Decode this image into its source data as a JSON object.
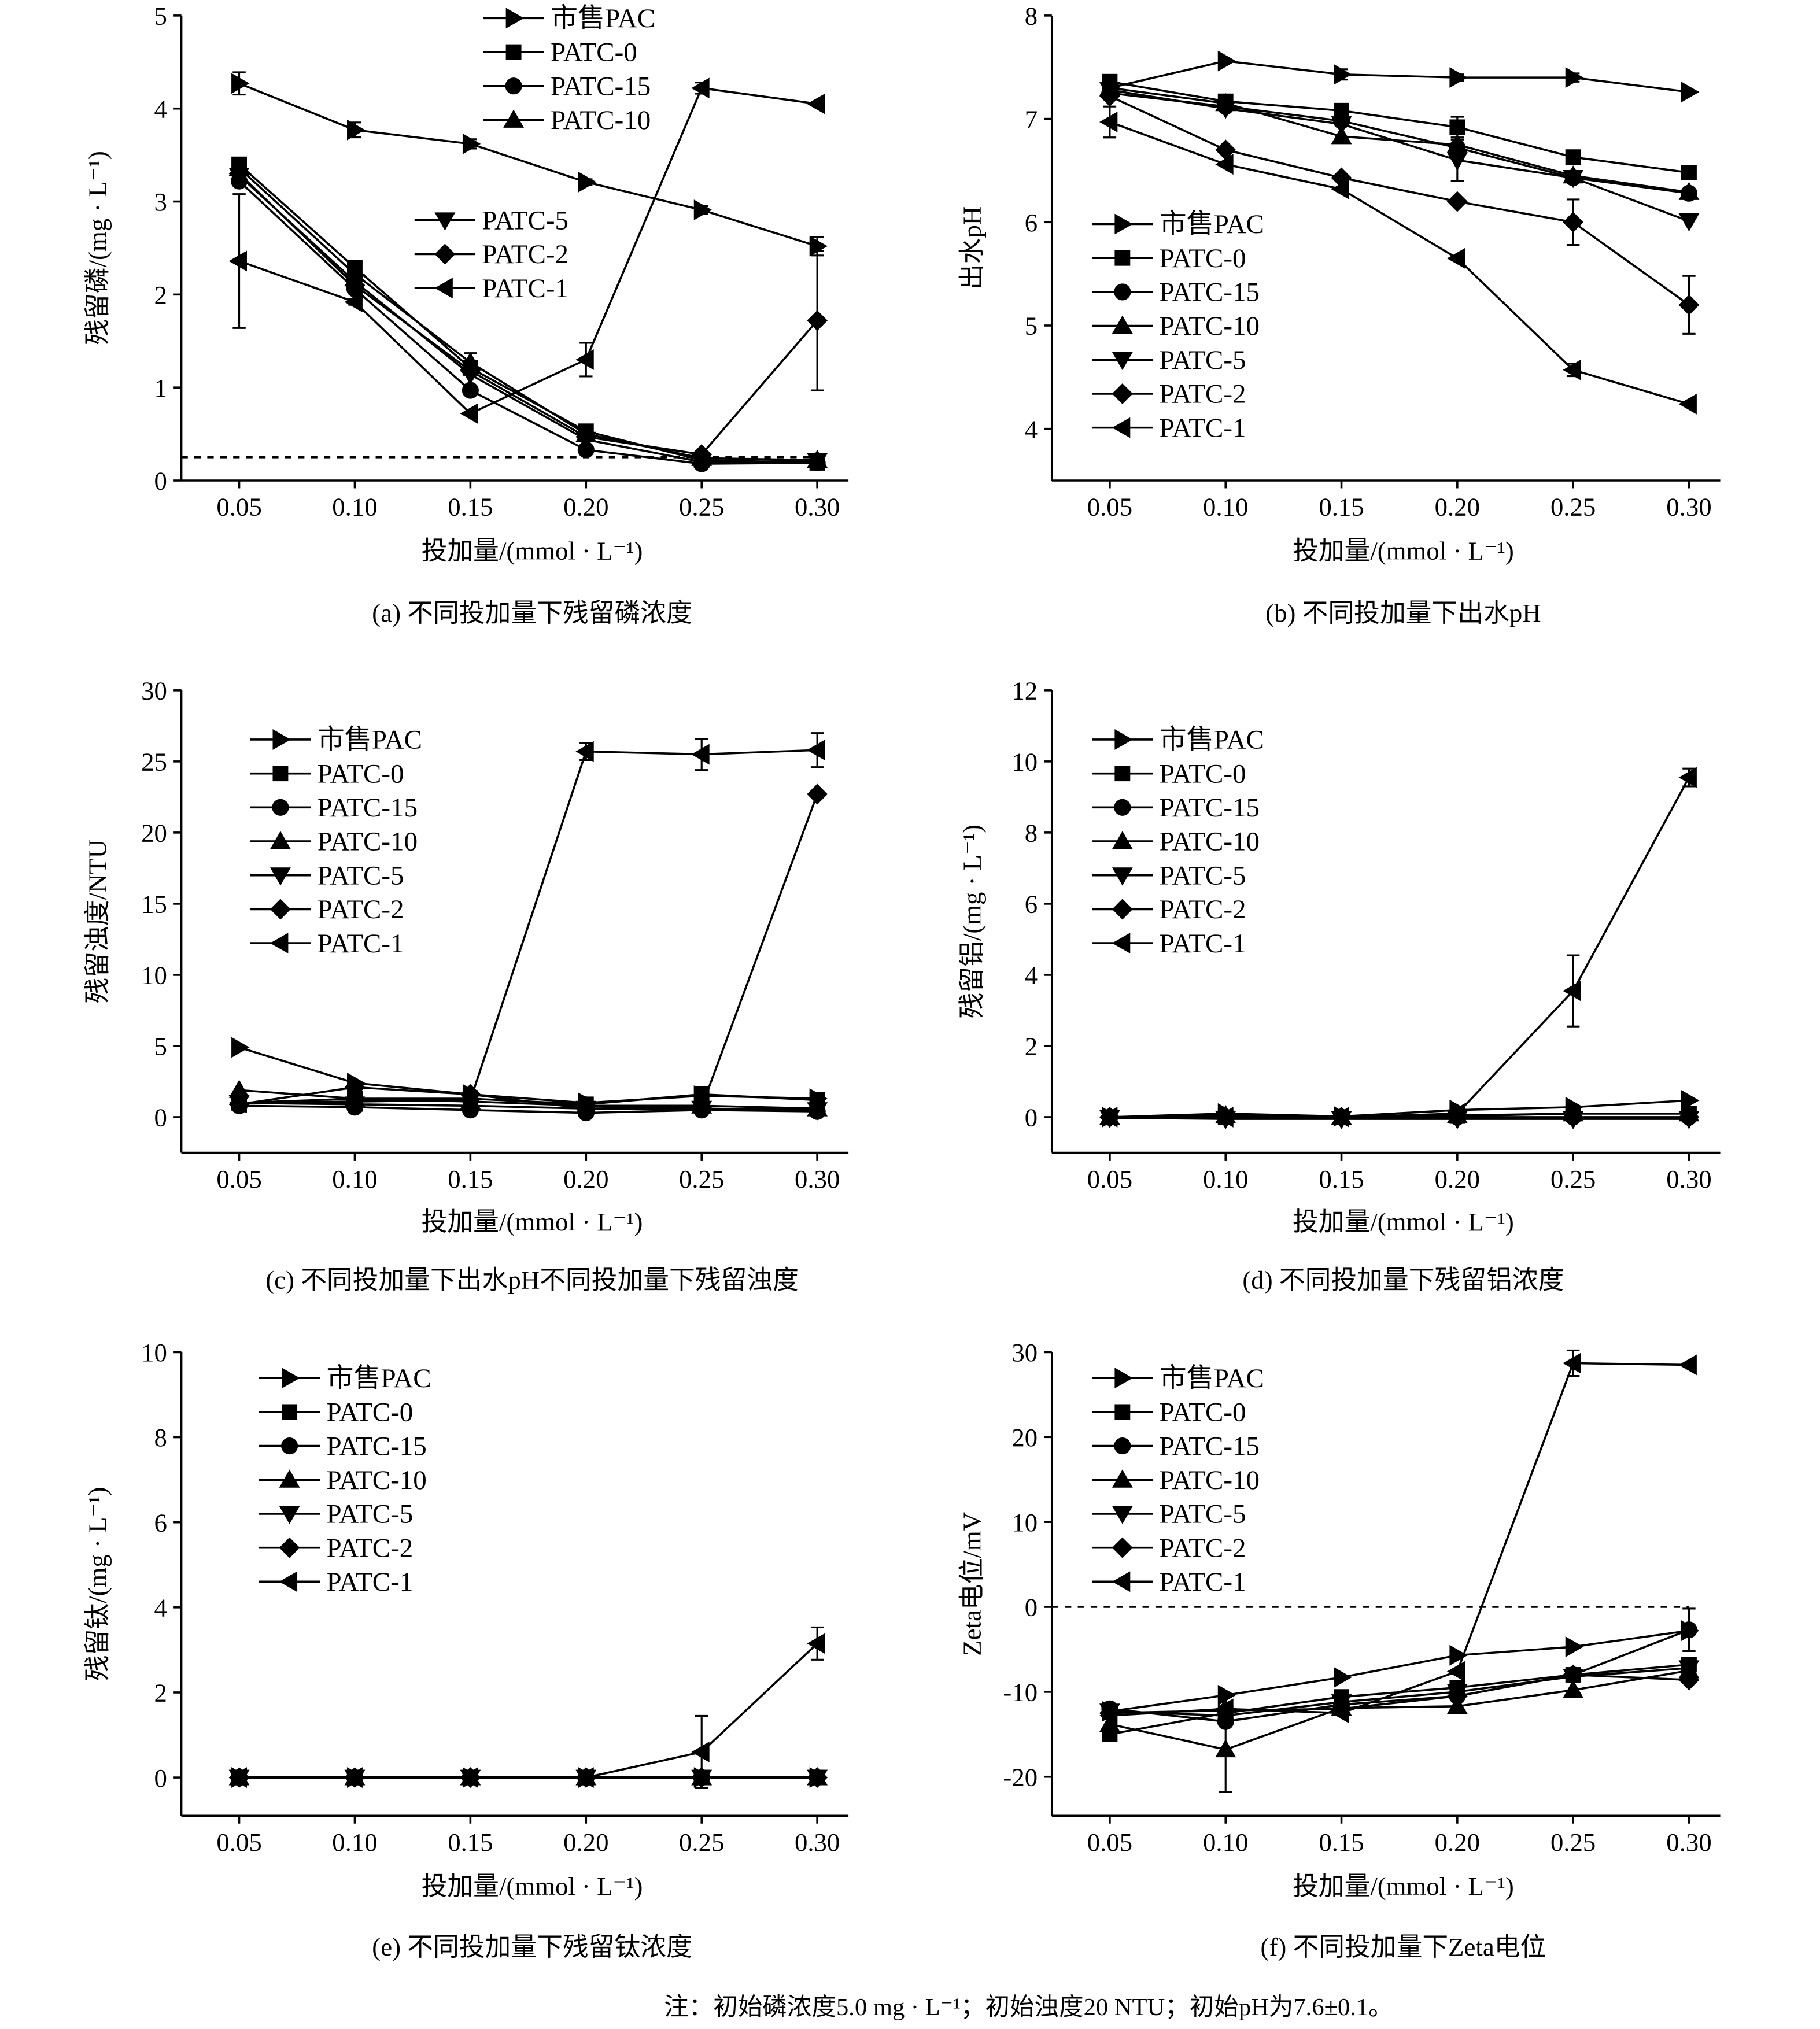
{
  "note": "注：初始磷浓度5.0 mg · L⁻¹；初始浊度20 NTU；初始pH为7.6±0.1。",
  "chart_data": [
    {
      "panel": "a",
      "type": "line",
      "caption": "(a) 不同投加量下残留磷浓度",
      "xlabel": "投加量/(mmol · L⁻¹)",
      "ylabel": "残留磷/(mg · L⁻¹)",
      "x": [
        0.05,
        0.1,
        0.15,
        0.2,
        0.25,
        0.3
      ],
      "xtick_labels": [
        "0.05",
        "0.10",
        "0.15",
        "0.20",
        "0.25",
        "0.30"
      ],
      "xlim": [
        0.025,
        0.3135
      ],
      "ylim": [
        0,
        5
      ],
      "yticks": [
        0,
        1,
        2,
        3,
        4,
        5
      ],
      "grid": false,
      "legend": "top-center",
      "ref_line_y": 0.25,
      "series": [
        {
          "name": "市售PAC",
          "marker": "triangle-right",
          "values": [
            4.27,
            3.77,
            3.62,
            3.21,
            2.91,
            2.52
          ],
          "err": [
            0.12,
            0.08,
            0.05,
            0.03,
            0.04,
            0.1
          ]
        },
        {
          "name": "PATC-0",
          "marker": "square",
          "values": [
            3.4,
            2.29,
            1.21,
            0.53,
            0.22,
            0.19
          ],
          "err": [
            0.05,
            0.04,
            0.06,
            0.04,
            0.02,
            0.02
          ]
        },
        {
          "name": "PATC-15",
          "marker": "circle",
          "values": [
            3.22,
            2.06,
            0.97,
            0.33,
            0.18,
            0.19
          ],
          "err": [
            0,
            0,
            0,
            0,
            0,
            0
          ]
        },
        {
          "name": "PATC-10",
          "marker": "triangle-up",
          "values": [
            3.36,
            2.22,
            1.27,
            0.5,
            0.24,
            0.22
          ],
          "err": [
            0,
            0,
            0.1,
            0,
            0,
            0
          ]
        },
        {
          "name": "PATC-5",
          "marker": "triangle-down",
          "values": [
            3.28,
            2.14,
            1.14,
            0.44,
            0.2,
            0.21
          ],
          "err": [
            0,
            0,
            0,
            0,
            0,
            0
          ]
        },
        {
          "name": "PATC-2",
          "marker": "diamond",
          "values": [
            3.3,
            2.1,
            1.18,
            0.47,
            0.28,
            1.72
          ],
          "err": [
            0,
            0,
            0,
            0,
            0,
            0.75
          ]
        },
        {
          "name": "PATC-1",
          "marker": "triangle-left",
          "values": [
            2.36,
            1.92,
            0.72,
            1.3,
            4.22,
            4.05
          ],
          "err": [
            0.72,
            0.03,
            0,
            0.18,
            0.06,
            0
          ]
        }
      ]
    },
    {
      "panel": "b",
      "type": "line",
      "caption": "(b) 不同投加量下出水pH",
      "xlabel": "投加量/(mmol · L⁻¹)",
      "ylabel": "出水pH",
      "x": [
        0.05,
        0.1,
        0.15,
        0.2,
        0.25,
        0.3
      ],
      "xtick_labels": [
        "0.05",
        "0.10",
        "0.15",
        "0.20",
        "0.25",
        "0.30"
      ],
      "xlim": [
        0.025,
        0.3135
      ],
      "ylim": [
        3.5,
        8
      ],
      "yticks": [
        4,
        5,
        6,
        7,
        8
      ],
      "grid": false,
      "legend": "lower-left",
      "series": [
        {
          "name": "市售PAC",
          "marker": "triangle-right",
          "values": [
            7.3,
            7.56,
            7.43,
            7.4,
            7.4,
            7.26
          ],
          "err": [
            0.08,
            0,
            0.05,
            0.03,
            0.04,
            0
          ]
        },
        {
          "name": "PATC-0",
          "marker": "square",
          "values": [
            7.36,
            7.17,
            7.08,
            6.92,
            6.63,
            6.48
          ],
          "err": [
            0,
            0,
            0,
            0.1,
            0,
            0
          ]
        },
        {
          "name": "PATC-15",
          "marker": "circle",
          "values": [
            7.25,
            7.12,
            6.98,
            6.72,
            6.43,
            6.28
          ],
          "err": [
            0,
            0,
            0,
            0,
            0,
            0
          ]
        },
        {
          "name": "PATC-10",
          "marker": "triangle-up",
          "values": [
            7.3,
            7.15,
            6.83,
            6.75,
            6.45,
            6.29
          ],
          "err": [
            0,
            0,
            0,
            0,
            0,
            0
          ]
        },
        {
          "name": "PATC-5",
          "marker": "triangle-down",
          "values": [
            7.28,
            7.1,
            6.95,
            6.6,
            6.43,
            6.01
          ],
          "err": [
            0,
            0,
            0,
            0.2,
            0,
            0
          ]
        },
        {
          "name": "PATC-2",
          "marker": "diamond",
          "values": [
            7.22,
            6.7,
            6.43,
            6.2,
            6.0,
            5.2
          ],
          "err": [
            0,
            0,
            0,
            0,
            0.22,
            0.28
          ]
        },
        {
          "name": "PATC-1",
          "marker": "triangle-left",
          "values": [
            6.97,
            6.56,
            6.32,
            5.65,
            4.57,
            4.24
          ],
          "err": [
            0.15,
            0,
            0,
            0,
            0.06,
            0
          ]
        }
      ]
    },
    {
      "panel": "c",
      "type": "line",
      "caption": "(c) 不同投加量下出水pH不同投加量下残留浊度",
      "xlabel": "投加量/(mmol · L⁻¹)",
      "ylabel": "残留浊度/NTU",
      "x": [
        0.05,
        0.1,
        0.15,
        0.2,
        0.25,
        0.3
      ],
      "xtick_labels": [
        "0.05",
        "0.10",
        "0.15",
        "0.20",
        "0.25",
        "0.30"
      ],
      "xlim": [
        0.025,
        0.3135
      ],
      "ylim": [
        -2.5,
        30
      ],
      "yticks": [
        0,
        5,
        10,
        15,
        20,
        25,
        30
      ],
      "grid": false,
      "legend": "top-left",
      "series": [
        {
          "name": "市售PAC",
          "marker": "triangle-right",
          "values": [
            4.9,
            2.4,
            1.6,
            1.0,
            1.5,
            1.3
          ],
          "err": [
            0,
            0,
            0,
            0,
            0,
            0
          ]
        },
        {
          "name": "PATC-0",
          "marker": "square",
          "values": [
            1.0,
            1.3,
            1.3,
            0.9,
            1.6,
            1.2
          ],
          "err": [
            0,
            0.5,
            0,
            0,
            0.5,
            0
          ]
        },
        {
          "name": "PATC-15",
          "marker": "circle",
          "values": [
            0.8,
            0.7,
            0.5,
            0.3,
            0.5,
            0.4
          ],
          "err": [
            0,
            0,
            0,
            0,
            0,
            0
          ]
        },
        {
          "name": "PATC-10",
          "marker": "triangle-up",
          "values": [
            1.9,
            1.3,
            1.1,
            0.8,
            0.8,
            0.6
          ],
          "err": [
            0,
            0,
            0,
            0,
            0,
            0
          ]
        },
        {
          "name": "PATC-5",
          "marker": "triangle-down",
          "values": [
            1.0,
            0.9,
            0.8,
            0.6,
            0.6,
            0.5
          ],
          "err": [
            0,
            0,
            0,
            0,
            0,
            0
          ]
        },
        {
          "name": "PATC-2",
          "marker": "diamond",
          "values": [
            0.9,
            2.1,
            1.6,
            0.6,
            0.7,
            22.7
          ],
          "err": [
            0,
            0.4,
            0,
            0,
            0,
            0
          ]
        },
        {
          "name": "PATC-1",
          "marker": "triangle-left",
          "values": [
            1.0,
            1.1,
            1.2,
            25.7,
            25.5,
            25.8
          ],
          "err": [
            0,
            0,
            0,
            0.6,
            1.1,
            1.2
          ]
        }
      ]
    },
    {
      "panel": "d",
      "type": "line",
      "caption": "(d) 不同投加量下残留铝浓度",
      "xlabel": "投加量/(mmol · L⁻¹)",
      "ylabel": "残留铝/(mg · L⁻¹)",
      "x": [
        0.05,
        0.1,
        0.15,
        0.2,
        0.25,
        0.3
      ],
      "xtick_labels": [
        "0.05",
        "0.10",
        "0.15",
        "0.20",
        "0.25",
        "0.30"
      ],
      "xlim": [
        0.025,
        0.3135
      ],
      "ylim": [
        -1,
        12
      ],
      "yticks": [
        0,
        2,
        4,
        6,
        8,
        10,
        12
      ],
      "grid": false,
      "legend": "top-left",
      "series": [
        {
          "name": "市售PAC",
          "marker": "triangle-right",
          "values": [
            0.0,
            0.1,
            0.02,
            0.2,
            0.28,
            0.47
          ],
          "err": [
            0,
            0,
            0,
            0,
            0,
            0
          ]
        },
        {
          "name": "PATC-0",
          "marker": "square",
          "values": [
            0.0,
            0.0,
            0.0,
            0.03,
            0.1,
            0.1
          ],
          "err": [
            0,
            0,
            0,
            0,
            0,
            0
          ]
        },
        {
          "name": "PATC-15",
          "marker": "circle",
          "values": [
            0.0,
            0.0,
            0.0,
            0.0,
            0.0,
            0.0
          ],
          "err": [
            0,
            0,
            0,
            0,
            0,
            0
          ]
        },
        {
          "name": "PATC-10",
          "marker": "triangle-up",
          "values": [
            0.0,
            0.05,
            0.0,
            0.05,
            0.1,
            0.1
          ],
          "err": [
            0,
            0,
            0,
            0,
            0,
            0
          ]
        },
        {
          "name": "PATC-5",
          "marker": "triangle-down",
          "values": [
            -0.02,
            -0.05,
            -0.05,
            -0.05,
            -0.05,
            -0.05
          ],
          "err": [
            0,
            0,
            0,
            0,
            0,
            0
          ]
        },
        {
          "name": "PATC-2",
          "marker": "diamond",
          "values": [
            0.0,
            0.0,
            0.0,
            0.0,
            0.0,
            0.0
          ],
          "err": [
            0,
            0,
            0,
            0,
            0,
            0
          ]
        },
        {
          "name": "PATC-1",
          "marker": "triangle-left",
          "values": [
            0.0,
            0.0,
            0.0,
            0.1,
            3.55,
            9.55
          ],
          "err": [
            0,
            0,
            0,
            0,
            1.0,
            0.25
          ]
        }
      ]
    },
    {
      "panel": "e",
      "type": "line",
      "caption": "(e) 不同投加量下残留钛浓度",
      "xlabel": "投加量/(mmol · L⁻¹)",
      "ylabel": "残留钛/(mg · L⁻¹)",
      "x": [
        0.05,
        0.1,
        0.15,
        0.2,
        0.25,
        0.3
      ],
      "xtick_labels": [
        "0.05",
        "0.10",
        "0.15",
        "0.20",
        "0.25",
        "0.30"
      ],
      "xlim": [
        0.025,
        0.3135
      ],
      "ylim": [
        -0.9,
        10
      ],
      "yticks": [
        0,
        2,
        4,
        6,
        8,
        10
      ],
      "grid": false,
      "legend": "top-left",
      "series": [
        {
          "name": "市售PAC",
          "marker": "triangle-right",
          "values": [
            0,
            0,
            0,
            0,
            0,
            0
          ],
          "err": [
            0,
            0,
            0,
            0,
            0,
            0
          ]
        },
        {
          "name": "PATC-0",
          "marker": "square",
          "values": [
            0,
            0,
            0,
            0,
            0,
            0
          ],
          "err": [
            0,
            0,
            0,
            0,
            0,
            0
          ]
        },
        {
          "name": "PATC-15",
          "marker": "circle",
          "values": [
            0,
            0,
            0,
            0,
            0,
            0
          ],
          "err": [
            0,
            0,
            0,
            0,
            0,
            0
          ]
        },
        {
          "name": "PATC-10",
          "marker": "triangle-up",
          "values": [
            0,
            0,
            0,
            0,
            0,
            0
          ],
          "err": [
            0,
            0,
            0,
            0,
            0,
            0
          ]
        },
        {
          "name": "PATC-5",
          "marker": "triangle-down",
          "values": [
            0,
            0,
            0,
            0,
            0,
            0
          ],
          "err": [
            0,
            0,
            0,
            0,
            0,
            0
          ]
        },
        {
          "name": "PATC-2",
          "marker": "diamond",
          "values": [
            0,
            0,
            0,
            0,
            0,
            0
          ],
          "err": [
            0,
            0,
            0,
            0,
            0,
            0
          ]
        },
        {
          "name": "PATC-1",
          "marker": "triangle-left",
          "values": [
            0,
            0,
            0,
            0,
            0.6,
            3.15
          ],
          "err": [
            0,
            0,
            0,
            0,
            0.85,
            0.38
          ]
        }
      ]
    },
    {
      "panel": "f",
      "type": "line",
      "caption": "(f) 不同投加量下Zeta电位",
      "xlabel": "投加量/(mmol · L⁻¹)",
      "ylabel": "Zeta电位/mV",
      "x": [
        0.05,
        0.1,
        0.15,
        0.2,
        0.25,
        0.3
      ],
      "xtick_labels": [
        "0.05",
        "0.10",
        "0.15",
        "0.20",
        "0.25",
        "0.30"
      ],
      "xlim": [
        0.025,
        0.3135
      ],
      "ylim": [
        -24.6,
        30
      ],
      "yticks": [
        -20,
        -10,
        0,
        10,
        20,
        30
      ],
      "grid": false,
      "legend": "top-left",
      "ref_line_y": 0,
      "series": [
        {
          "name": "市售PAC",
          "marker": "triangle-right",
          "values": [
            -12.3,
            -10.4,
            -8.3,
            -5.7,
            -4.7,
            -2.8
          ],
          "err": [
            0,
            0,
            0,
            0,
            0,
            0
          ]
        },
        {
          "name": "PATC-0",
          "marker": "square",
          "values": [
            -15.0,
            -12.5,
            -10.6,
            -9.5,
            -8.0,
            -6.8
          ],
          "err": [
            0.5,
            0,
            0,
            0,
            0,
            0
          ]
        },
        {
          "name": "PATC-15",
          "marker": "circle",
          "values": [
            -12.0,
            -13.5,
            -11.5,
            -10.5,
            -8.0,
            -2.7
          ],
          "err": [
            0,
            0,
            0,
            0,
            0,
            2.5
          ]
        },
        {
          "name": "PATC-10",
          "marker": "triangle-up",
          "values": [
            -13.8,
            -16.8,
            -11.9,
            -11.7,
            -9.8,
            -7.5
          ],
          "err": [
            0,
            5.0,
            0,
            0,
            0,
            0
          ]
        },
        {
          "name": "PATC-5",
          "marker": "triangle-down",
          "values": [
            -12.3,
            -12.8,
            -11.2,
            -10.0,
            -8.2,
            -7.2
          ],
          "err": [
            0,
            0,
            0,
            0,
            0,
            0
          ]
        },
        {
          "name": "PATC-2",
          "marker": "diamond",
          "values": [
            -12.5,
            -12.2,
            -12.0,
            -10.5,
            -8.0,
            -8.6
          ],
          "err": [
            0,
            0,
            0,
            0,
            0,
            0
          ]
        },
        {
          "name": "PATC-1",
          "marker": "triangle-left",
          "values": [
            -12.8,
            -12.0,
            -12.5,
            -7.6,
            28.7,
            28.5
          ],
          "err": [
            0,
            0,
            0,
            0,
            1.5,
            0
          ]
        }
      ]
    }
  ]
}
